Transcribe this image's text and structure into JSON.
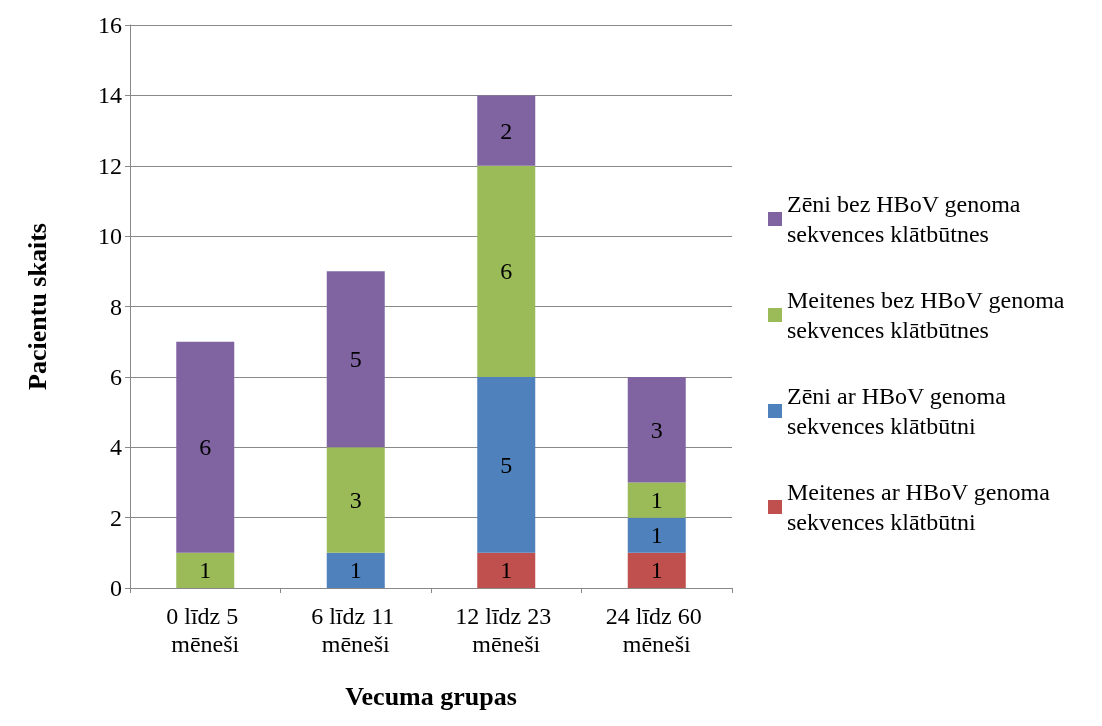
{
  "chart_data": {
    "type": "bar",
    "stacked": true,
    "xlabel": "Vecuma grupas",
    "ylabel": "Pacientu skaits",
    "categories": [
      "0 līdz 5 mēneši",
      "6 līdz 11 mēneši",
      "12 līdz 23 mēneši",
      "24 līdz 60 mēneši"
    ],
    "series": [
      {
        "name": "Meitenes ar HBoV genoma sekvences klātbūtni",
        "color": "#c0504d",
        "values": [
          null,
          null,
          1,
          1
        ]
      },
      {
        "name": "Zēni ar HBoV genoma sekvences klātbūtni",
        "color": "#4f81bd",
        "values": [
          null,
          1,
          5,
          1
        ]
      },
      {
        "name": "Meitenes bez HBoV genoma sekvences klātbūtnes",
        "color": "#9bbb59",
        "values": [
          1,
          3,
          6,
          1
        ]
      },
      {
        "name": "Zēni bez HBoV genoma sekvences klātbūtnes",
        "color": "#8064a2",
        "values": [
          6,
          5,
          2,
          3
        ]
      }
    ],
    "ylim": [
      0,
      16
    ],
    "yticks": [
      0,
      2,
      4,
      6,
      8,
      10,
      12,
      14,
      16
    ],
    "grid": "y",
    "legend": "right",
    "data_labels": true
  }
}
